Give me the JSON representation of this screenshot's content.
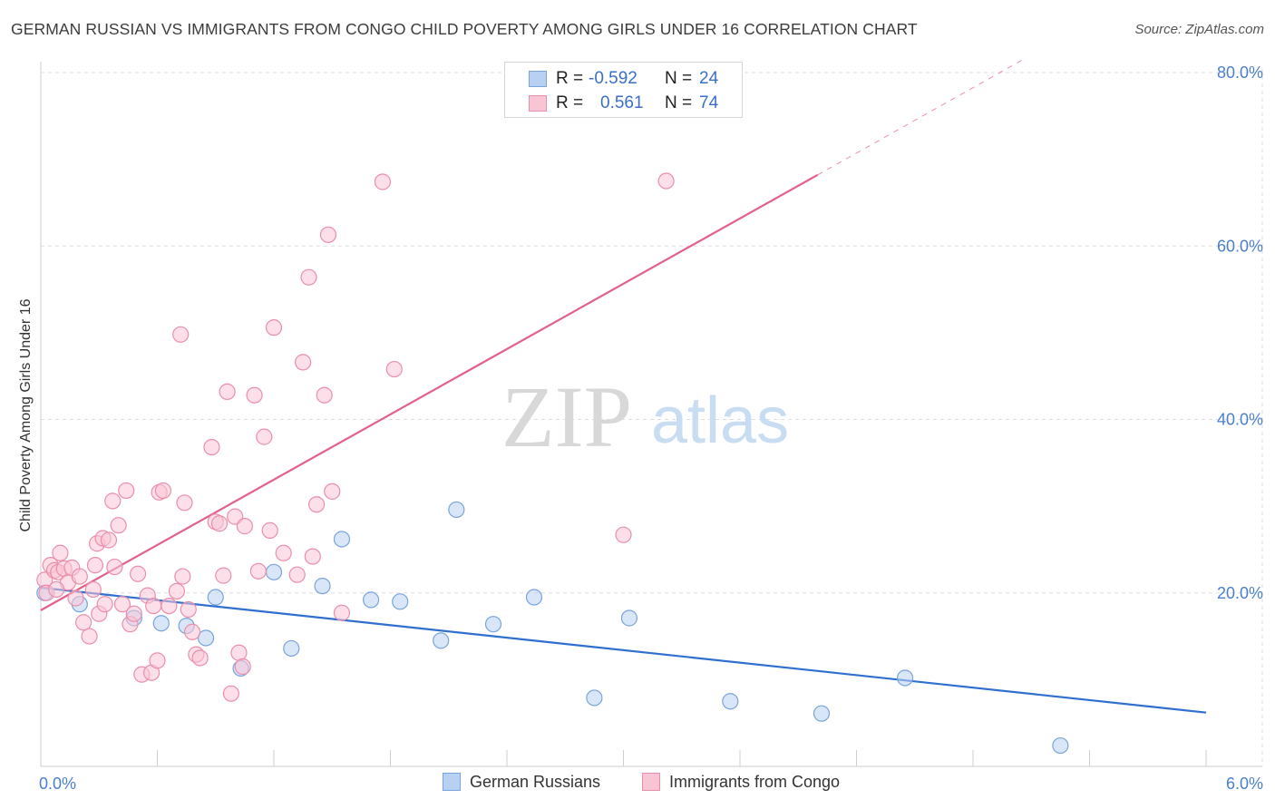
{
  "title": "GERMAN RUSSIAN VS IMMIGRANTS FROM CONGO CHILD POVERTY AMONG GIRLS UNDER 16 CORRELATION CHART",
  "source": "Source: ZipAtlas.com",
  "watermark": {
    "zip": "ZIP",
    "atlas": "atlas"
  },
  "legend_top": {
    "rows": [
      {
        "r_label": "R =",
        "r_value": "-0.592",
        "n_label": "N =",
        "n_value": "24"
      },
      {
        "r_label": "R =",
        "r_value": "0.561",
        "n_label": "N =",
        "n_value": "74"
      }
    ]
  },
  "legend_bottom": {
    "items": [
      {
        "label": "German Russians"
      },
      {
        "label": "Immigrants from Congo"
      }
    ]
  },
  "colors": {
    "blue_fill": "#b8d1f3",
    "blue_stroke": "#7aa4dc",
    "blue_line": "#2f6fd0",
    "pink_fill": "#f9c5d5",
    "pink_stroke": "#ea8fab",
    "pink_line": "#e2608a",
    "axis_label": "#4a7fd0",
    "grid": "#dddddd"
  },
  "chart_data": {
    "type": "scatter",
    "title": "GERMAN RUSSIAN VS IMMIGRANTS FROM CONGO CHILD POVERTY AMONG GIRLS UNDER 16 CORRELATION CHART",
    "xlabel": "",
    "ylabel": "Child Poverty Among Girls Under 16",
    "xlim": [
      0,
      6
    ],
    "ylim": [
      0,
      80
    ],
    "x_tick_labels": [
      "0.0%",
      "6.0%"
    ],
    "y_ticks": [
      20,
      40,
      60,
      80
    ],
    "y_tick_labels": [
      "20.0%",
      "40.0%",
      "60.0%",
      "80.0%"
    ],
    "grid": true,
    "legend_position": "top-center",
    "series": [
      {
        "name": "German Russians",
        "color": "#7aa4dc",
        "r": -0.592,
        "n": 24,
        "trend": {
          "x0": 0,
          "y0": 20.6,
          "x1": 6,
          "y1": 6.2
        },
        "points": [
          [
            0.02,
            20.0
          ],
          [
            0.2,
            18.7
          ],
          [
            0.48,
            17.1
          ],
          [
            0.62,
            16.5
          ],
          [
            0.75,
            16.2
          ],
          [
            0.85,
            14.8
          ],
          [
            0.9,
            19.5
          ],
          [
            1.03,
            11.3
          ],
          [
            1.2,
            22.4
          ],
          [
            1.29,
            13.6
          ],
          [
            1.45,
            20.8
          ],
          [
            1.55,
            26.2
          ],
          [
            1.7,
            19.2
          ],
          [
            1.85,
            19.0
          ],
          [
            2.06,
            14.5
          ],
          [
            2.14,
            29.6
          ],
          [
            2.33,
            16.4
          ],
          [
            2.54,
            19.5
          ],
          [
            2.85,
            7.9
          ],
          [
            3.03,
            17.1
          ],
          [
            3.55,
            7.5
          ],
          [
            4.02,
            6.1
          ],
          [
            4.45,
            10.2
          ],
          [
            5.25,
            2.4
          ]
        ]
      },
      {
        "name": "Immigrants from Congo",
        "color": "#ea8fab",
        "r": 0.561,
        "n": 74,
        "trend": {
          "x0": 0,
          "y0": 18.0,
          "x1": 4.0,
          "y1": 68.2,
          "dashed_to_x": 5.05,
          "dashed_to_y": 81.4
        },
        "points": [
          [
            0.02,
            21.5
          ],
          [
            0.03,
            20.0
          ],
          [
            0.05,
            23.2
          ],
          [
            0.07,
            22.6
          ],
          [
            0.09,
            22.4
          ],
          [
            0.1,
            24.6
          ],
          [
            0.12,
            22.8
          ],
          [
            0.14,
            21.2
          ],
          [
            0.16,
            22.9
          ],
          [
            0.18,
            19.4
          ],
          [
            0.2,
            21.9
          ],
          [
            0.22,
            16.6
          ],
          [
            0.25,
            15.0
          ],
          [
            0.27,
            20.4
          ],
          [
            0.28,
            23.2
          ],
          [
            0.29,
            25.7
          ],
          [
            0.32,
            26.3
          ],
          [
            0.3,
            17.6
          ],
          [
            0.33,
            18.7
          ],
          [
            0.35,
            26.1
          ],
          [
            0.37,
            30.6
          ],
          [
            0.38,
            23.0
          ],
          [
            0.4,
            27.8
          ],
          [
            0.42,
            18.7
          ],
          [
            0.44,
            31.8
          ],
          [
            0.46,
            16.4
          ],
          [
            0.48,
            17.6
          ],
          [
            0.5,
            22.2
          ],
          [
            0.52,
            10.6
          ],
          [
            0.55,
            19.7
          ],
          [
            0.57,
            10.8
          ],
          [
            0.58,
            18.5
          ],
          [
            0.6,
            12.2
          ],
          [
            0.61,
            31.6
          ],
          [
            0.63,
            31.8
          ],
          [
            0.66,
            18.5
          ],
          [
            0.7,
            20.2
          ],
          [
            0.72,
            49.8
          ],
          [
            0.73,
            21.9
          ],
          [
            0.74,
            30.4
          ],
          [
            0.76,
            18.1
          ],
          [
            0.78,
            15.5
          ],
          [
            0.8,
            12.9
          ],
          [
            0.82,
            12.5
          ],
          [
            0.88,
            36.8
          ],
          [
            0.9,
            28.2
          ],
          [
            0.92,
            28.0
          ],
          [
            0.94,
            22.0
          ],
          [
            0.96,
            43.2
          ],
          [
            0.98,
            8.4
          ],
          [
            1.0,
            28.8
          ],
          [
            1.02,
            13.1
          ],
          [
            1.04,
            11.5
          ],
          [
            1.05,
            27.7
          ],
          [
            1.1,
            42.8
          ],
          [
            1.12,
            22.5
          ],
          [
            1.15,
            38.0
          ],
          [
            1.18,
            27.2
          ],
          [
            1.2,
            50.6
          ],
          [
            1.25,
            24.6
          ],
          [
            1.32,
            22.1
          ],
          [
            1.35,
            46.6
          ],
          [
            1.38,
            56.4
          ],
          [
            1.4,
            24.2
          ],
          [
            1.42,
            30.2
          ],
          [
            1.46,
            42.8
          ],
          [
            1.48,
            61.3
          ],
          [
            1.5,
            31.7
          ],
          [
            1.55,
            17.7
          ],
          [
            1.76,
            67.4
          ],
          [
            1.82,
            45.8
          ],
          [
            3.0,
            26.7
          ],
          [
            3.22,
            67.5
          ],
          [
            0.08,
            20.4
          ]
        ]
      }
    ]
  }
}
